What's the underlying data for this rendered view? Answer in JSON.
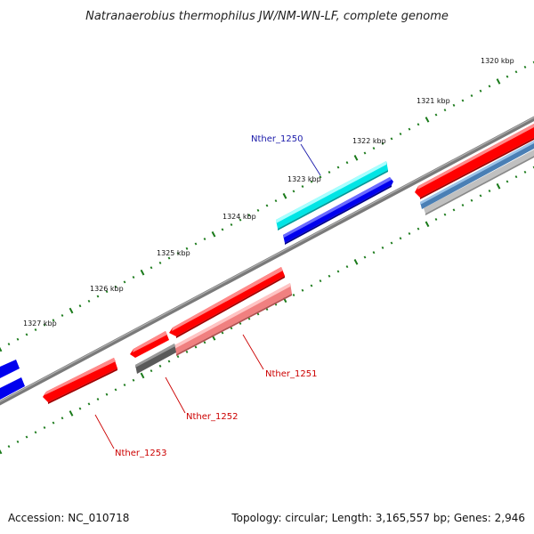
{
  "title": "Natranaerobius thermophilus JW/NM-WN-LF, complete genome",
  "accession": "Accession: NC_010718",
  "topology": "Topology: circular; Length: 3,165,557 bp; Genes: 2,946",
  "colors": {
    "backbone": "#7a7a7a",
    "tick_minor": "#1a7a1a",
    "tick_major": "#0d6e0d",
    "red": "#ff0000",
    "pink": "#f08080",
    "gray": "#5a5a5a",
    "cyan": "#00e5e5",
    "blue": "#0000ee",
    "steel": "#4a7fb5",
    "silver": "#b8b8b8",
    "label_blue": "#1a1aaa",
    "label_red": "#cc0000"
  },
  "tick_labels": [
    "1320 kbp",
    "1321 kbp",
    "1322 kbp",
    "1323 kbp",
    "1324 kbp",
    "1325 kbp",
    "1326 kbp",
    "1327 kbp"
  ],
  "gene_labels": {
    "g1250": "Nther_1250",
    "g1251": "Nther_1251",
    "g1252": "Nther_1252",
    "g1253": "Nther_1253"
  }
}
